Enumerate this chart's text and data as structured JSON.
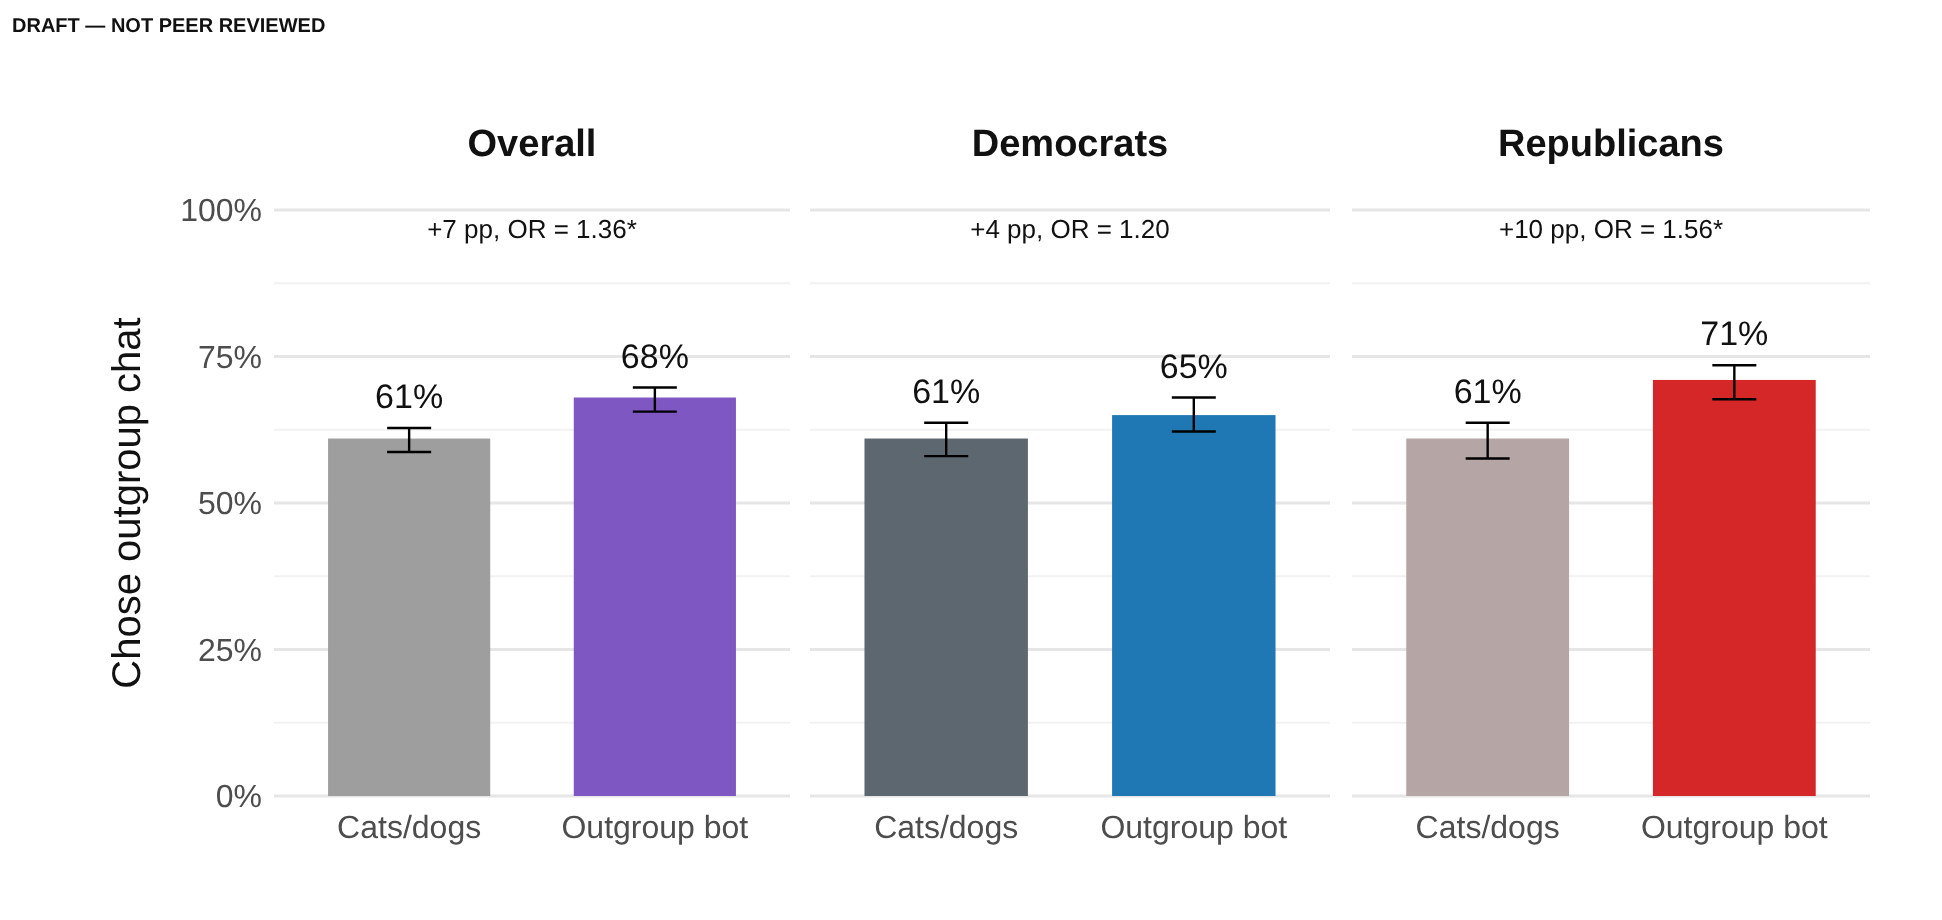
{
  "chart_data": [
    {
      "type": "bar",
      "title": "Overall",
      "ylabel": "Chose outgroup chat",
      "categories": [
        "Cats/dogs",
        "Outgroup bot"
      ],
      "values": [
        61,
        68
      ],
      "colors": [
        "#9e9e9e",
        "#7e57c2"
      ],
      "errors": [
        [
          58.7,
          62.8
        ],
        [
          65.6,
          69.7
        ]
      ],
      "value_labels": [
        "61%",
        "68%"
      ],
      "ylim": [
        0,
        100
      ],
      "yticks": [
        {
          "value": 0,
          "label": "0%"
        },
        {
          "value": 12.5,
          "label": null
        },
        {
          "value": 25,
          "label": "25%"
        },
        {
          "value": 37.5,
          "label": null
        },
        {
          "value": 50,
          "label": "50%"
        },
        {
          "value": 62.5,
          "label": null
        },
        {
          "value": 75,
          "label": "75%"
        },
        {
          "value": 87.5,
          "label": null
        },
        {
          "value": 100,
          "label": "100%"
        }
      ],
      "grid": "y",
      "annotations": [
        "DRAFT — NOT PEER REVIEWED",
        "+7 pp,  OR = 1.36*"
      ]
    },
    {
      "type": "bar",
      "title": "Democrats",
      "categories": [
        "Cats/dogs",
        "Outgroup bot"
      ],
      "values": [
        61,
        65
      ],
      "colors": [
        "#5c6770",
        "#1f77b4"
      ],
      "errors": [
        [
          58.0,
          63.7
        ],
        [
          62.2,
          68.0
        ]
      ],
      "value_labels": [
        "61%",
        "65%"
      ],
      "ylim": [
        0,
        100
      ],
      "yticks": [
        0,
        {
          "value": 12.5,
          "label": null
        },
        25,
        {
          "value": 37.5,
          "label": null
        },
        50,
        {
          "value": 62.5,
          "label": null
        },
        75,
        {
          "value": 87.5,
          "label": null
        },
        100
      ],
      "grid": "y",
      "tick_labels": "x",
      "annotations": [
        "+4 pp,  OR = 1.20"
      ]
    },
    {
      "type": "bar",
      "title": "Republicans",
      "categories": [
        "Cats/dogs",
        "Outgroup bot"
      ],
      "values": [
        61,
        71
      ],
      "colors": [
        "#b5a5a4",
        "#d62728"
      ],
      "errors": [
        [
          57.6,
          63.7
        ],
        [
          67.7,
          73.5
        ]
      ],
      "value_labels": [
        "61%",
        "71%"
      ],
      "ylim": [
        0,
        100
      ],
      "yticks": [
        0,
        {
          "value": 12.5,
          "label": null
        },
        25,
        {
          "value": 37.5,
          "label": null
        },
        50,
        {
          "value": 62.5,
          "label": null
        },
        75,
        {
          "value": 87.5,
          "label": null
        },
        100
      ],
      "grid": "y",
      "tick_labels": "x",
      "annotations": [
        "+10 pp,  OR = 1.56*"
      ]
    }
  ]
}
